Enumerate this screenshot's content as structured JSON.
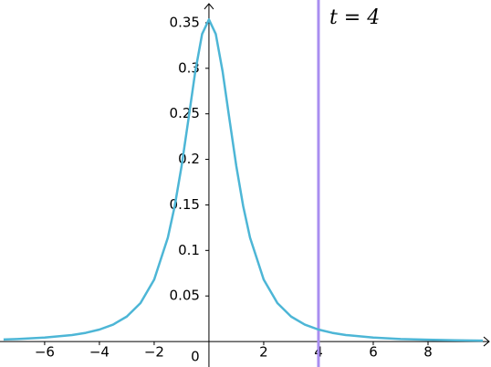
{
  "chart_data": {
    "type": "line",
    "x": [
      -7.5,
      -7,
      -6,
      -5,
      -4.5,
      -4,
      -3.5,
      -3,
      -2.5,
      -2,
      -1.5,
      -1.25,
      -1,
      -0.75,
      -0.5,
      -0.25,
      0,
      0.25,
      0.5,
      0.75,
      1,
      1.25,
      1.5,
      2,
      2.5,
      3,
      3.5,
      4,
      4.5,
      5,
      6,
      7,
      8,
      9,
      10
    ],
    "series": [
      {
        "color": "#4db6d6",
        "values": [
          0.0022,
          0.0027,
          0.0043,
          0.0071,
          0.0095,
          0.0131,
          0.0186,
          0.0274,
          0.0422,
          0.068,
          0.1141,
          0.1487,
          0.1925,
          0.2438,
          0.2963,
          0.3376,
          0.3536,
          0.3376,
          0.2963,
          0.2438,
          0.1925,
          0.1487,
          0.1141,
          0.068,
          0.0422,
          0.0274,
          0.0186,
          0.0131,
          0.0095,
          0.0071,
          0.0043,
          0.0027,
          0.0019,
          0.0013,
          0.001
        ]
      }
    ],
    "xlim": [
      -7.63,
      10.3
    ],
    "ylim": [
      -0.028,
      0.375
    ],
    "xticks": [
      {
        "value": -6,
        "label": "−6"
      },
      {
        "value": -4,
        "label": "−4"
      },
      {
        "value": -2,
        "label": "−2"
      },
      0,
      2,
      4,
      6,
      8
    ],
    "yticks": [
      0.05,
      0.1,
      0.15,
      0.2,
      0.25,
      0.3,
      0.35
    ],
    "vline": {
      "x": 4,
      "label": "t = 4",
      "color": "#a98ef0"
    }
  }
}
